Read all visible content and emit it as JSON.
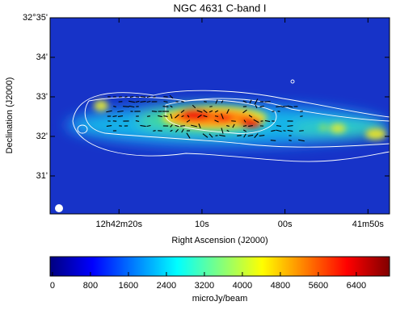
{
  "chart_data": {
    "type": "image",
    "title": "NGC 4631  C-band  I",
    "x_label": "Right Ascension (J2000)",
    "y_label": "Declination (J2000)",
    "xlim": [
      88.3,
      47.4
    ],
    "xticks": [
      {
        "value": 80,
        "label": "12h42m20s"
      },
      {
        "value": 70,
        "label": "10s"
      },
      {
        "value": 60,
        "label": "00s"
      },
      {
        "value": 50,
        "label": "41m50s"
      }
    ],
    "ylim": [
      30.04,
      35
    ],
    "yticks": [
      {
        "value": 35,
        "label": "32°35'"
      },
      {
        "value": 34,
        "label": "34'"
      },
      {
        "value": 33,
        "label": "33'"
      },
      {
        "value": 32,
        "label": "32'"
      },
      {
        "value": 31,
        "label": "31'"
      }
    ],
    "colorbar_label": "microJy/beam",
    "clim": [
      -50,
      7100
    ],
    "colorbar_ticks": [
      0,
      800,
      1600,
      2400,
      3200,
      4000,
      4800,
      5600,
      6400
    ],
    "colormap": [
      "#000080",
      "#0000ff",
      "#0080ff",
      "#00ffff",
      "#80ff80",
      "#ffff00",
      "#ff8000",
      "#ff0000",
      "#800000"
    ]
  }
}
